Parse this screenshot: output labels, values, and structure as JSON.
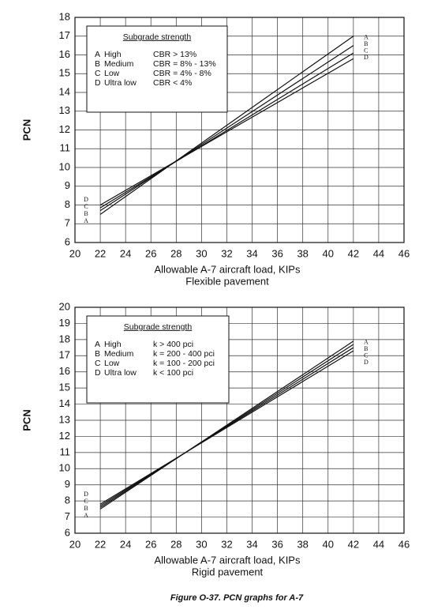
{
  "chart_data": [
    {
      "type": "line",
      "ylabel": "PCN",
      "xlabel": "Allowable A-7 aircraft load, KIPs",
      "subtitle": "Flexible pavement",
      "xlim": [
        20,
        46
      ],
      "ylim": [
        6,
        18
      ],
      "xticks": [
        20,
        22,
        24,
        26,
        28,
        30,
        32,
        34,
        36,
        38,
        40,
        42,
        44,
        46
      ],
      "yticks": [
        6,
        7,
        8,
        9,
        10,
        11,
        12,
        13,
        14,
        15,
        16,
        17,
        18
      ],
      "grid": true,
      "legend_title": "Subgrade strength",
      "x": [
        22,
        42
      ],
      "series": [
        {
          "name": "A",
          "description": "High",
          "criterion": "CBR > 13%",
          "color": "#111111",
          "values": [
            7.5,
            17.0
          ]
        },
        {
          "name": "B",
          "description": "Medium",
          "criterion": "CBR = 8% - 13%",
          "color": "#111111",
          "values": [
            7.7,
            16.5
          ]
        },
        {
          "name": "C",
          "description": "Low",
          "criterion": "CBR = 4% - 8%",
          "color": "#111111",
          "values": [
            7.85,
            16.1
          ]
        },
        {
          "name": "D",
          "description": "Ultra low",
          "criterion": "CBR < 4%",
          "color": "#111111",
          "values": [
            8.0,
            15.8
          ]
        }
      ]
    },
    {
      "type": "line",
      "ylabel": "PCN",
      "xlabel": "Allowable A-7 aircraft load, KIPs",
      "subtitle": "Rigid pavement",
      "xlim": [
        20,
        46
      ],
      "ylim": [
        6,
        20
      ],
      "xticks": [
        20,
        22,
        24,
        26,
        28,
        30,
        32,
        34,
        36,
        38,
        40,
        42,
        44,
        46
      ],
      "yticks": [
        6,
        7,
        8,
        9,
        10,
        11,
        12,
        13,
        14,
        15,
        16,
        17,
        18,
        19,
        20
      ],
      "grid": true,
      "legend_title": "Subgrade strength",
      "x": [
        22,
        42
      ],
      "series": [
        {
          "name": "A",
          "description": "High",
          "criterion": "k > 400 pci",
          "color": "#111111",
          "values": [
            7.5,
            17.9
          ]
        },
        {
          "name": "B",
          "description": "Medium",
          "criterion": "k = 200 - 400 pci",
          "color": "#111111",
          "values": [
            7.6,
            17.7
          ]
        },
        {
          "name": "C",
          "description": "Low",
          "criterion": "k = 100 - 200 pci",
          "color": "#111111",
          "values": [
            7.7,
            17.5
          ]
        },
        {
          "name": "D",
          "description": "Ultra low",
          "criterion": "k < 100 pci",
          "color": "#111111",
          "values": [
            7.8,
            17.3
          ]
        }
      ]
    }
  ],
  "caption": "Figure O-37.  PCN graphs for A-7"
}
